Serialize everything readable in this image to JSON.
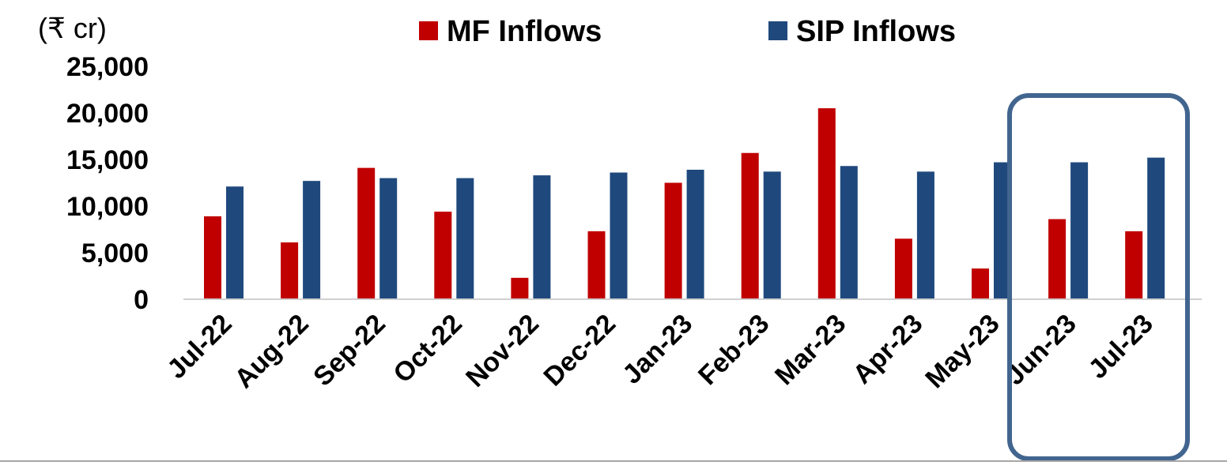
{
  "chart_data": {
    "type": "bar",
    "unit_label": "(₹ cr)",
    "categories": [
      "Jul-22",
      "Aug-22",
      "Sep-22",
      "Oct-22",
      "Nov-22",
      "Dec-22",
      "Jan-23",
      "Feb-23",
      "Mar-23",
      "Apr-23",
      "May-23",
      "Jun-23",
      "Jul-23"
    ],
    "series": [
      {
        "name": "MF Inflows",
        "color": "#c00000",
        "values": [
          8900,
          6100,
          14100,
          9400,
          2300,
          7300,
          12500,
          15700,
          20500,
          6500,
          3300,
          8600,
          7300
        ]
      },
      {
        "name": "SIP Inflows",
        "color": "#1f497d",
        "values": [
          12100,
          12700,
          13000,
          13000,
          13300,
          13600,
          13900,
          13700,
          14300,
          13700,
          14700,
          14700,
          15200
        ]
      }
    ],
    "yticks": [
      "0",
      "5,000",
      "10,000",
      "15,000",
      "20,000",
      "25,000"
    ],
    "ylim": [
      0,
      25000
    ],
    "grid": false,
    "legend": "top-center",
    "highlight": {
      "categories": [
        "Jun-23",
        "Jul-23"
      ],
      "color": "#41658f"
    }
  }
}
